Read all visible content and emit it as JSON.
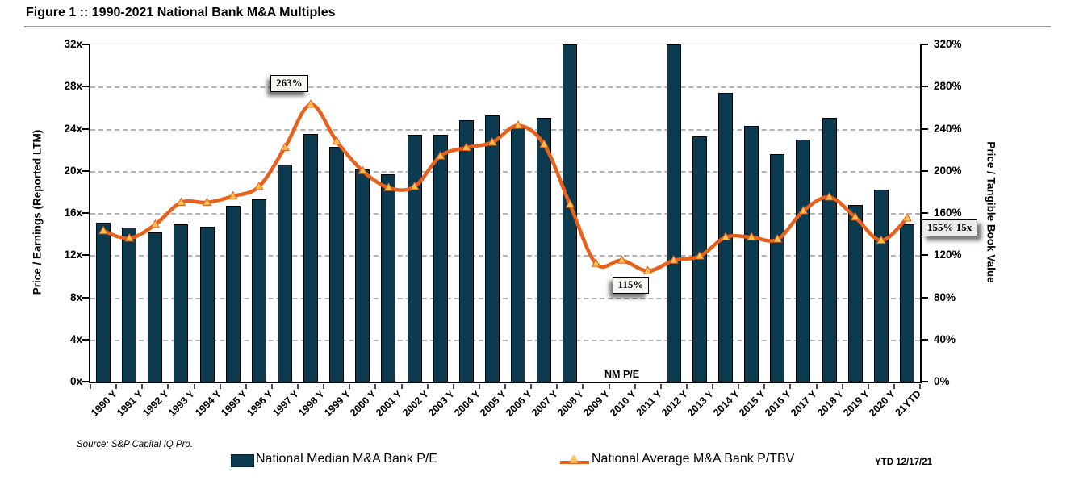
{
  "header": {
    "title": "Figure 1 :: 1990-2021 National Bank M&A Multiples"
  },
  "footer": {
    "source": "Source: S&P Capital IQ Pro.",
    "ytd_note": "YTD 12/17/21"
  },
  "legend": [
    {
      "label": "National Median M&A Bank P/E",
      "type": "bar"
    },
    {
      "label": "National Average M&A Bank P/TBV",
      "type": "line"
    }
  ],
  "colors": {
    "bar": "#0C3B50",
    "bar_border": "#000000",
    "line": "#E8611C",
    "marker_fill": "#FFC04D",
    "grid": "#B3B3B3",
    "axis": "#000000"
  },
  "chart_data": {
    "type": "bar+line",
    "title": "Figure 1 :: 1990-2021 National Bank M&A Multiples",
    "categories": [
      "1990 Y",
      "1991 Y",
      "1992 Y",
      "1993 Y",
      "1994 Y",
      "1995 Y",
      "1996 Y",
      "1997 Y",
      "1998 Y",
      "1999 Y",
      "2000 Y",
      "2001 Y",
      "2002 Y",
      "2003 Y",
      "2004 Y",
      "2005 Y",
      "2006 Y",
      "2007 Y",
      "2008 Y",
      "2009 Y",
      "2010 Y",
      "2011 Y",
      "2012 Y",
      "2013 Y",
      "2014 Y",
      "2015 Y",
      "2016 Y",
      "2017 Y",
      "2018 Y",
      "2019 Y",
      "2020 Y",
      "21YTD"
    ],
    "y_left": {
      "label": "Price / Earnings (Reported LTM)",
      "ticks": [
        "0x",
        "4x",
        "8x",
        "12x",
        "16x",
        "20x",
        "24x",
        "28x",
        "32x"
      ],
      "range": [
        0,
        32
      ],
      "unit": "x"
    },
    "y_right": {
      "label": "Price / Tangible Book Value",
      "ticks": [
        "0%",
        "40%",
        "80%",
        "120%",
        "160%",
        "200%",
        "240%",
        "280%",
        "320%"
      ],
      "range": [
        0,
        320
      ],
      "unit": "%"
    },
    "series": [
      {
        "name": "National Median M&A Bank P/E",
        "type": "bar",
        "axis": "left",
        "unit": "x",
        "values": [
          15.1,
          14.6,
          14.2,
          14.9,
          14.7,
          16.7,
          17.3,
          20.6,
          23.5,
          22.3,
          20.1,
          19.7,
          23.4,
          23.4,
          24.8,
          25.3,
          24.3,
          25.0,
          32.1,
          null,
          null,
          null,
          32.1,
          23.3,
          27.4,
          24.3,
          21.6,
          23.0,
          25.0,
          16.8,
          18.2,
          14.9
        ]
      },
      {
        "name": "National Average M&A Bank P/TBV",
        "type": "line",
        "axis": "right",
        "unit": "%",
        "values": [
          143,
          136,
          149,
          170,
          170,
          176,
          185,
          222,
          263,
          228,
          200,
          184,
          185,
          214,
          222,
          227,
          243,
          225,
          168,
          112,
          115,
          105,
          115,
          119,
          137,
          137,
          135,
          162,
          175,
          156,
          134,
          155
        ]
      }
    ],
    "annotations": [
      {
        "text": "263%",
        "category": "1998 Y",
        "placement": "above"
      },
      {
        "text": "115%",
        "category": "2010 Y",
        "placement": "below"
      },
      {
        "text": "155% 15x",
        "category": "21YTD",
        "placement": "right"
      }
    ],
    "nm_label": {
      "text": "NM P/E",
      "categories": [
        "2009 Y",
        "2010 Y",
        "2011 Y"
      ]
    },
    "bars_clipped_at_axis_max": [
      "2008 Y",
      "2012 Y"
    ],
    "grid": "horizontal-dashed",
    "legend_position": "bottom"
  }
}
